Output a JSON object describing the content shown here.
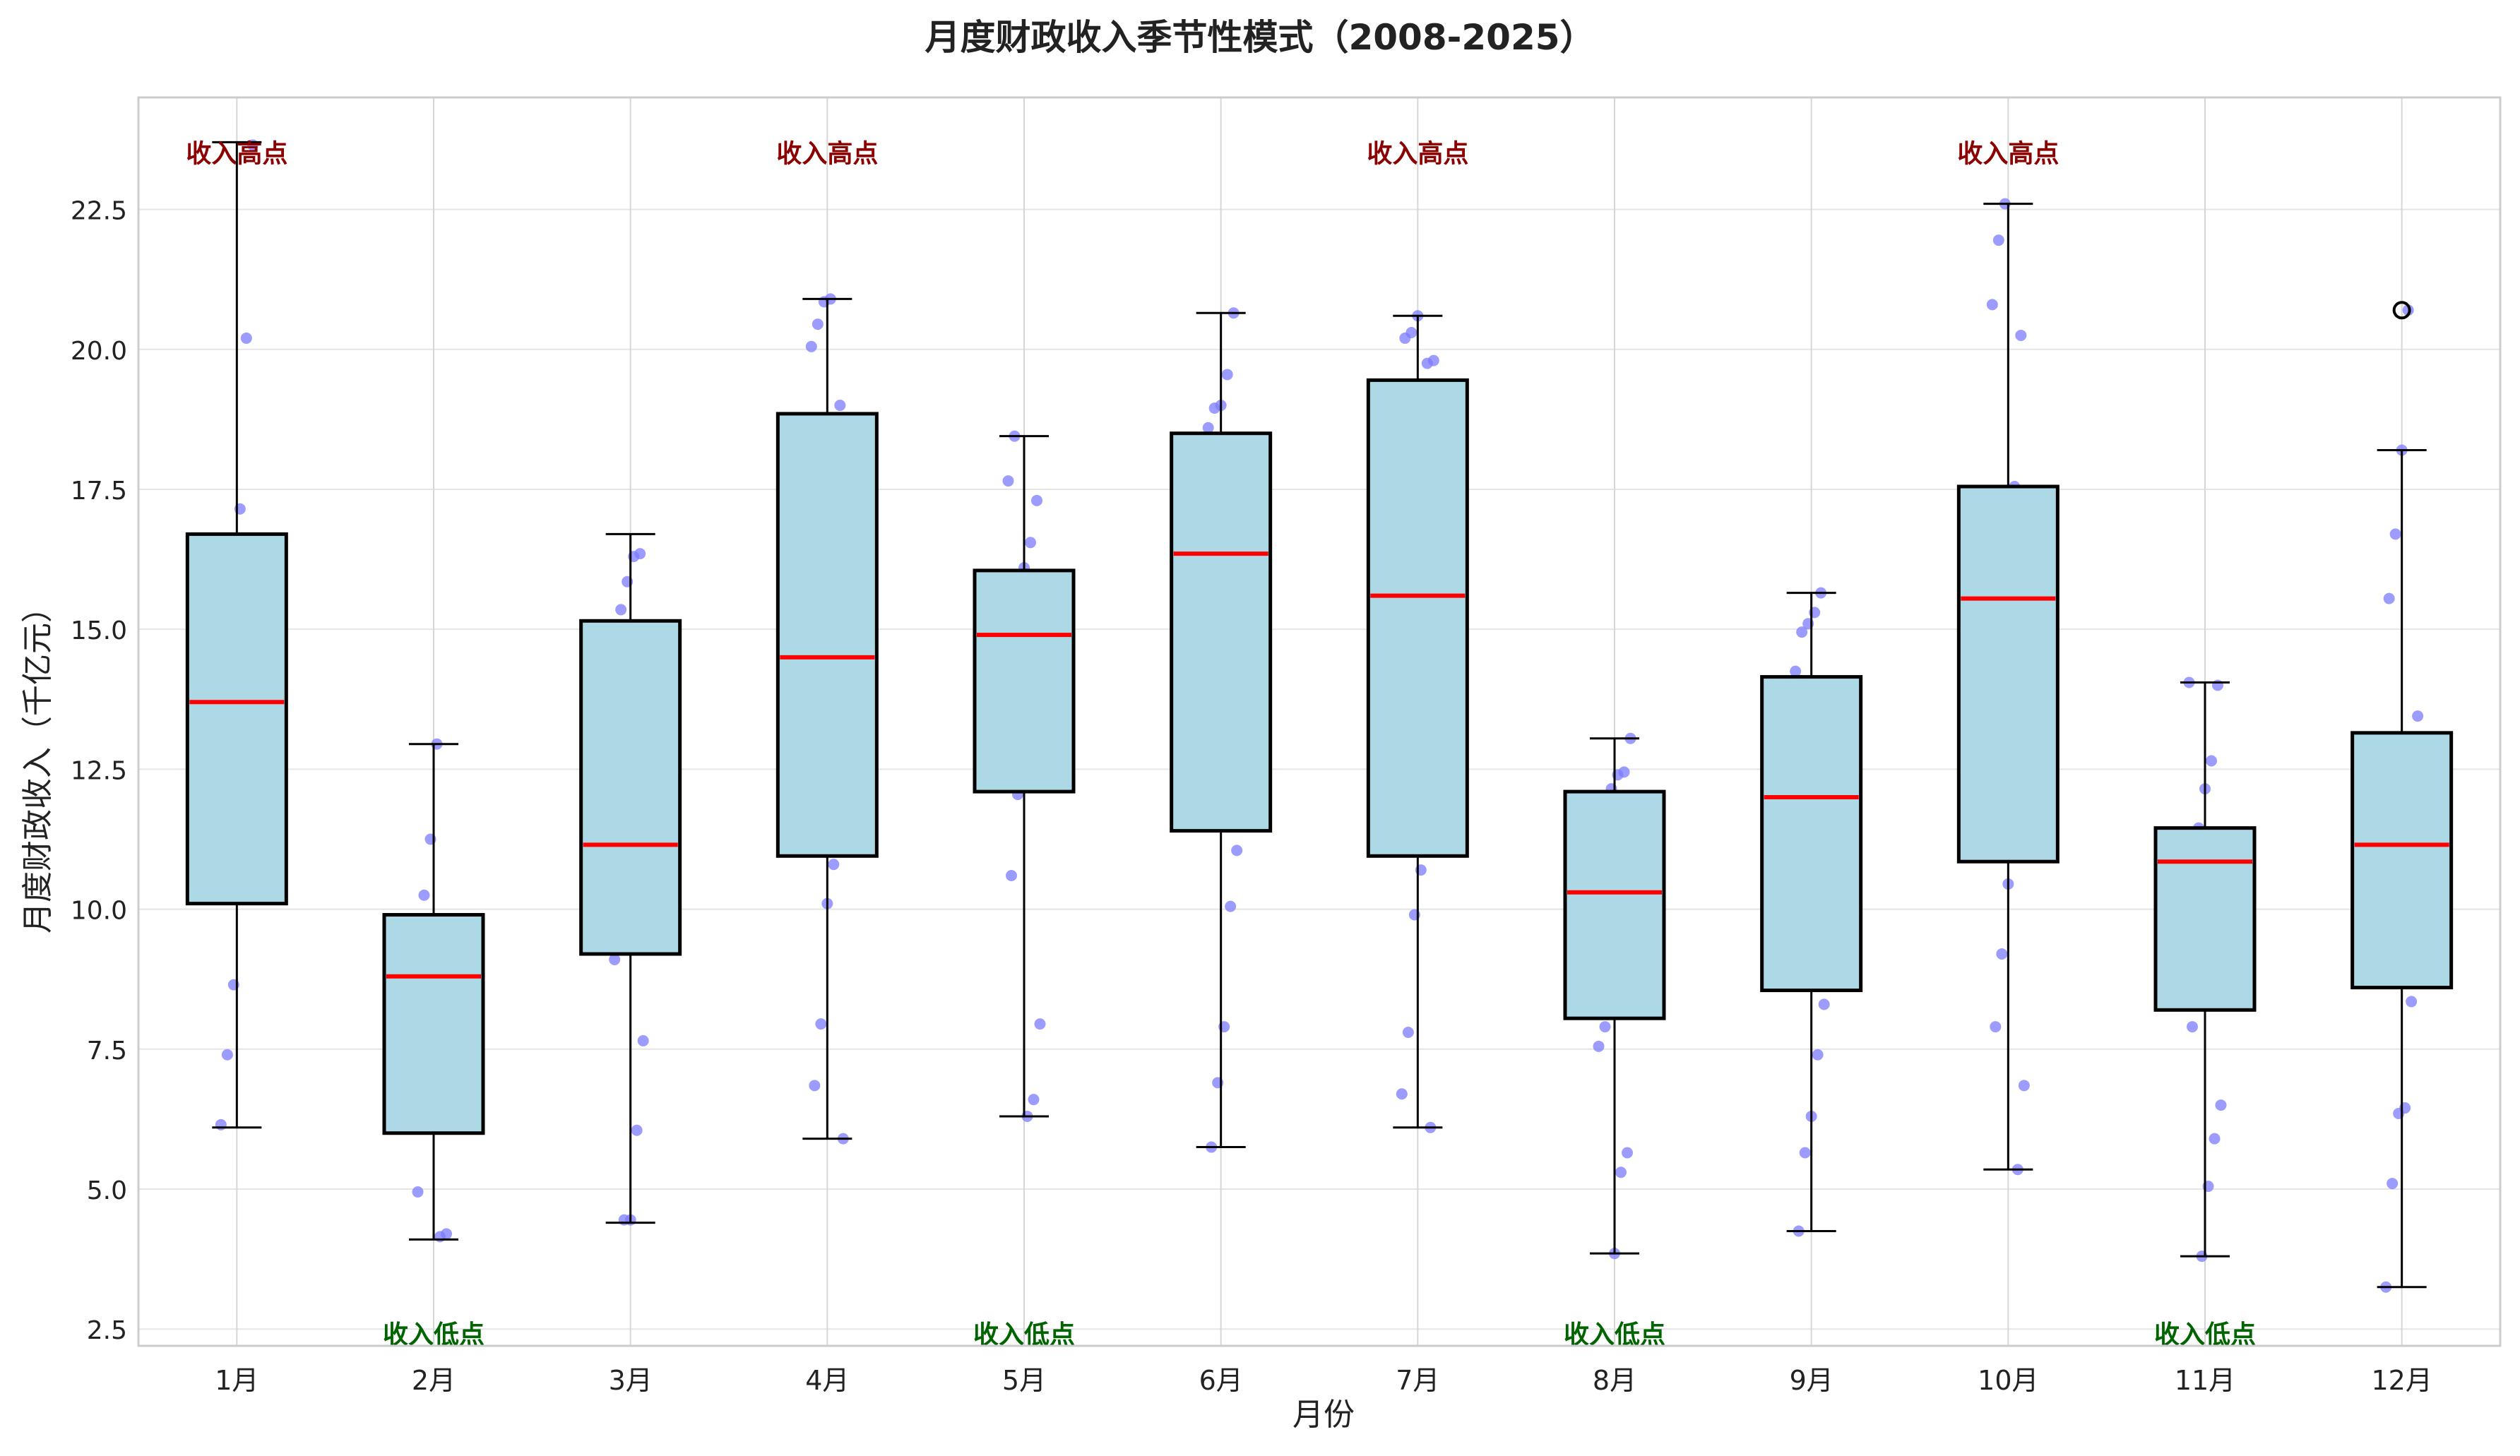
{
  "chart_data": {
    "type": "box",
    "title": "月度财政收入季节性模式（2008-2025）",
    "xlabel": "月份",
    "ylabel": "月度财政收入（千亿元）",
    "ylim": [
      2.2,
      24.5
    ],
    "yticks": [
      2.5,
      5.0,
      7.5,
      10.0,
      12.5,
      15.0,
      17.5,
      20.0,
      22.5
    ],
    "ytick_labels": [
      "2.5",
      "5.0",
      "7.5",
      "10.0",
      "12.5",
      "15.0",
      "17.5",
      "20.0",
      "22.5"
    ],
    "categories": [
      "1月",
      "2月",
      "3月",
      "4月",
      "5月",
      "6月",
      "7月",
      "8月",
      "9月",
      "10月",
      "11月",
      "12月"
    ],
    "boxes": [
      {
        "whislo": 6.1,
        "q1": 10.1,
        "med": 13.7,
        "q3": 16.7,
        "whishi": 23.7,
        "fliers": []
      },
      {
        "whislo": 4.1,
        "q1": 6.0,
        "med": 8.8,
        "q3": 9.9,
        "whishi": 12.95,
        "fliers": []
      },
      {
        "whislo": 4.4,
        "q1": 9.2,
        "med": 11.15,
        "q3": 15.15,
        "whishi": 16.7,
        "fliers": []
      },
      {
        "whislo": 5.9,
        "q1": 10.95,
        "med": 14.5,
        "q3": 18.85,
        "whishi": 20.9,
        "fliers": []
      },
      {
        "whislo": 6.3,
        "q1": 12.1,
        "med": 14.9,
        "q3": 16.05,
        "whishi": 18.45,
        "fliers": []
      },
      {
        "whislo": 5.75,
        "q1": 11.4,
        "med": 16.35,
        "q3": 18.5,
        "whishi": 20.65,
        "fliers": []
      },
      {
        "whislo": 6.1,
        "q1": 10.95,
        "med": 15.6,
        "q3": 19.45,
        "whishi": 20.6,
        "fliers": []
      },
      {
        "whislo": 3.85,
        "q1": 8.05,
        "med": 10.3,
        "q3": 12.1,
        "whishi": 13.05,
        "fliers": []
      },
      {
        "whislo": 4.25,
        "q1": 8.55,
        "med": 12.0,
        "q3": 14.15,
        "whishi": 15.65,
        "fliers": []
      },
      {
        "whislo": 5.35,
        "q1": 10.85,
        "med": 15.55,
        "q3": 17.55,
        "whishi": 22.6,
        "fliers": []
      },
      {
        "whislo": 3.8,
        "q1": 8.2,
        "med": 10.85,
        "q3": 11.45,
        "whishi": 14.05,
        "fliers": []
      },
      {
        "whislo": 3.25,
        "q1": 8.6,
        "med": 11.15,
        "q3": 13.15,
        "whishi": 18.2,
        "fliers": [
          20.7
        ]
      }
    ],
    "points": [
      [
        6.15,
        7.4,
        8.65,
        17.15,
        20.2,
        23.65
      ],
      [
        4.15,
        4.2,
        4.95,
        10.25,
        11.25,
        12.95
      ],
      [
        4.45,
        4.45,
        6.05,
        7.65,
        9.1,
        15.35,
        15.85,
        16.3,
        16.35
      ],
      [
        5.9,
        6.85,
        7.95,
        10.1,
        10.8,
        19.0,
        20.05,
        20.45,
        20.85,
        20.9
      ],
      [
        6.3,
        6.6,
        7.95,
        10.6,
        12.05,
        16.1,
        16.55,
        17.3,
        17.65,
        18.45
      ],
      [
        5.75,
        6.9,
        7.9,
        10.05,
        11.05,
        18.6,
        18.95,
        19.0,
        19.55,
        20.65
      ],
      [
        6.1,
        6.7,
        7.8,
        9.9,
        10.7,
        19.75,
        19.8,
        20.2,
        20.3,
        20.6
      ],
      [
        3.85,
        5.3,
        5.65,
        7.55,
        7.9,
        12.15,
        12.4,
        12.45,
        13.05
      ],
      [
        4.25,
        5.65,
        6.3,
        7.4,
        8.3,
        14.25,
        14.95,
        15.1,
        15.3,
        15.65
      ],
      [
        5.35,
        6.85,
        7.9,
        9.2,
        10.45,
        17.55,
        20.25,
        20.8,
        21.95,
        22.6
      ],
      [
        3.8,
        5.05,
        5.9,
        6.5,
        7.9,
        11.45,
        12.15,
        12.65,
        14.0,
        14.05
      ],
      [
        3.25,
        5.1,
        6.35,
        6.45,
        8.35,
        13.45,
        15.55,
        16.7,
        18.2,
        20.7
      ]
    ],
    "annotations": [
      {
        "text": "收入高点",
        "month": "1月",
        "kind": "high",
        "y": 23.5
      },
      {
        "text": "收入低点",
        "month": "2月",
        "kind": "low",
        "y": 2.4
      },
      {
        "text": "收入高点",
        "month": "4月",
        "kind": "high",
        "y": 23.5
      },
      {
        "text": "收入低点",
        "month": "5月",
        "kind": "low",
        "y": 2.4
      },
      {
        "text": "收入高点",
        "month": "7月",
        "kind": "high",
        "y": 23.5
      },
      {
        "text": "收入低点",
        "month": "8月",
        "kind": "low",
        "y": 2.4
      },
      {
        "text": "收入高点",
        "month": "10月",
        "kind": "high",
        "y": 23.5
      },
      {
        "text": "收入低点",
        "month": "11月",
        "kind": "low",
        "y": 2.4
      }
    ],
    "colors": {
      "box_fill": "#add8e6",
      "median": "#ff0000",
      "points": "#7b7bff",
      "high_text": "#8b0000",
      "low_text": "#006400",
      "grid": "#e5e5e5",
      "frame": "#cccccc"
    },
    "grid": true
  }
}
